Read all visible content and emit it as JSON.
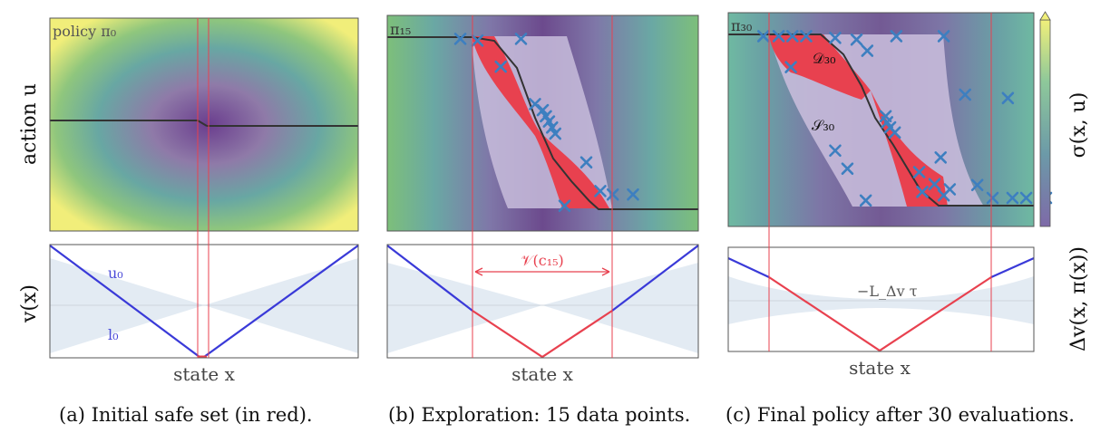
{
  "figure": {
    "panels": [
      {
        "caption": "(a) Initial safe set (in red).",
        "policy_label": "policy π₀",
        "lyap_labels": [
          "u₀",
          "l₀"
        ],
        "xlabel": "state x"
      },
      {
        "caption": "(b) Exploration: 15 data points.",
        "policy_label": "π₁₅",
        "level_label": "𝒱(c₁₅)",
        "xlabel": "state x"
      },
      {
        "caption": "(c) Final policy after 30 evaluations.",
        "policy_label": "π₃₀",
        "region_labels": [
          "𝒟₃₀",
          "𝒮₃₀"
        ],
        "threshold_label": "−L_Δv τ",
        "xlabel": "state x"
      }
    ],
    "ylabel_top": "action u",
    "ylabel_bottom": "v(x)",
    "colorbar_label": "σ(x, u)",
    "ylabel_right_bottom": "Δv(x, π(x))",
    "colors": {
      "safe_region": "#e8414f",
      "lyapunov_safe": "#e8414f",
      "lyapunov_unsafe": "#3a3ad8",
      "data_points": "#3d7fc0",
      "policy": "#333333",
      "uncertainty_band": "#e3ebf3"
    }
  },
  "chart_data": [
    {
      "type": "scatter",
      "title": "",
      "description_values": {
        "panel": "b",
        "data_points_count": 15,
        "x_markers": [
          [
            -0.53,
            0.97
          ],
          [
            -0.42,
            0.95
          ],
          [
            -0.14,
            0.97
          ],
          [
            -0.27,
            0.65
          ],
          [
            -0.05,
            0.22
          ],
          [
            0.0,
            0.15
          ],
          [
            0.02,
            0.08
          ],
          [
            0.04,
            0.02
          ],
          [
            0.06,
            -0.05
          ],
          [
            0.08,
            -0.12
          ],
          [
            0.28,
            -0.45
          ],
          [
            0.37,
            -0.78
          ],
          [
            0.45,
            -0.82
          ],
          [
            0.58,
            -0.82
          ],
          [
            0.14,
            -0.95
          ]
        ]
      }
    },
    {
      "type": "scatter",
      "title": "",
      "description_values": {
        "panel": "c",
        "data_points_count": 30,
        "x_markers": [
          [
            -0.77,
            0.98
          ],
          [
            -0.67,
            0.98
          ],
          [
            -0.58,
            0.98
          ],
          [
            -0.49,
            0.98
          ],
          [
            -0.3,
            0.96
          ],
          [
            -0.16,
            0.94
          ],
          [
            0.1,
            0.98
          ],
          [
            0.41,
            0.98
          ],
          [
            -0.59,
            0.62
          ],
          [
            -0.09,
            0.81
          ],
          [
            0.55,
            0.3
          ],
          [
            0.83,
            0.26
          ],
          [
            -0.3,
            -0.35
          ],
          [
            0.03,
            0.05
          ],
          [
            0.04,
            -0.02
          ],
          [
            0.06,
            -0.08
          ],
          [
            0.09,
            -0.14
          ],
          [
            -0.22,
            -0.56
          ],
          [
            0.25,
            -0.6
          ],
          [
            0.39,
            -0.43
          ],
          [
            0.35,
            -0.74
          ],
          [
            0.41,
            -0.87
          ],
          [
            0.45,
            -0.8
          ],
          [
            0.63,
            -0.75
          ],
          [
            0.73,
            -0.9
          ],
          [
            0.86,
            -0.9
          ],
          [
            0.95,
            -0.9
          ],
          [
            1.08,
            -0.9
          ],
          [
            0.27,
            -0.83
          ],
          [
            -0.1,
            -0.93
          ]
        ]
      }
    }
  ]
}
